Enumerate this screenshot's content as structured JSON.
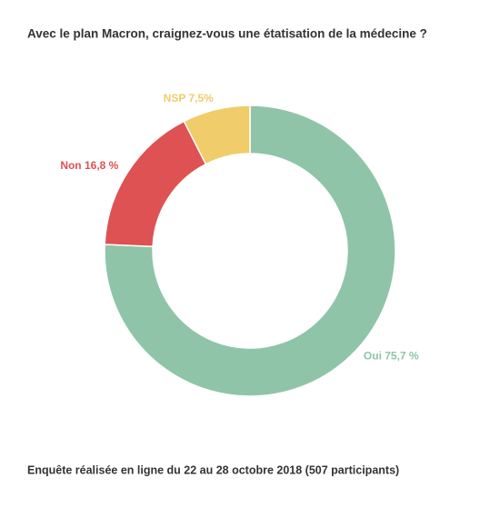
{
  "chart_data": {
    "type": "donut",
    "title": "Avec le plan Macron, craignez-vous une étatisation de la médecine ?",
    "footnote": "Enquête réalisée en ligne du 22 au 28 octobre 2018  (507 participants)",
    "categories": [
      "Oui",
      "Non",
      "NSP"
    ],
    "values": [
      75.7,
      16.8,
      7.5
    ],
    "value_labels": [
      "75,7 %",
      "16,8 %",
      "7,5%"
    ],
    "colors": [
      "#8fc4a8",
      "#de5253",
      "#f0cc6a"
    ]
  }
}
